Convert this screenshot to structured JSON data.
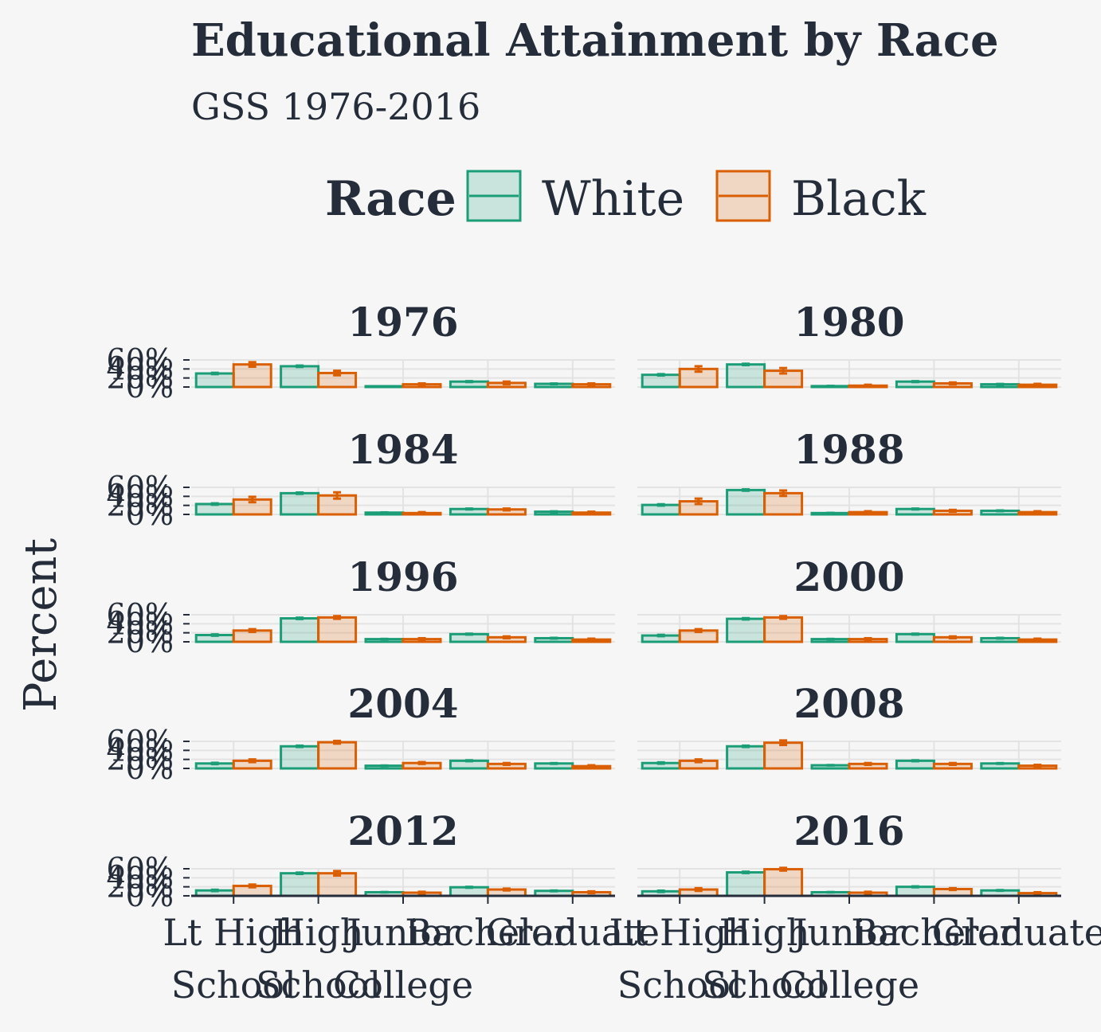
{
  "colors": {
    "white": "#1b9e77",
    "black": "#d95f02",
    "text": "#252d3a",
    "grid": "#e3e3e3",
    "background": "#f6f6f6"
  },
  "chart_data": {
    "type": "bar",
    "title": "Educational Attainment by Race",
    "subtitle": "GSS 1976-2016",
    "ylabel": "Percent",
    "xlabel": "",
    "ylim": [
      0,
      0.6
    ],
    "yticks": [
      "0%",
      "20%",
      "40%",
      "60%"
    ],
    "categories": [
      "Lt High School",
      "High School",
      "Junior College",
      "Bachelor",
      "Graduate"
    ],
    "legend": {
      "title": "Race",
      "entries": [
        "White",
        "Black"
      ],
      "position": "top"
    },
    "grid": true,
    "panels": [
      {
        "year": "1976",
        "series": [
          {
            "name": "White",
            "values": [
              0.3,
              0.46,
              0.0,
              0.12,
              0.07
            ],
            "errors": [
              0.015,
              0.015,
              0.005,
              0.01,
              0.008
            ]
          },
          {
            "name": "Black",
            "values": [
              0.5,
              0.31,
              0.06,
              0.09,
              0.06
            ],
            "errors": [
              0.05,
              0.05,
              0.02,
              0.03,
              0.02
            ]
          }
        ]
      },
      {
        "year": "1980",
        "series": [
          {
            "name": "White",
            "values": [
              0.27,
              0.5,
              0.02,
              0.12,
              0.06
            ],
            "errors": [
              0.015,
              0.015,
              0.005,
              0.01,
              0.008
            ]
          },
          {
            "name": "Black",
            "values": [
              0.4,
              0.36,
              0.03,
              0.08,
              0.05
            ],
            "errors": [
              0.06,
              0.06,
              0.02,
              0.02,
              0.02
            ]
          }
        ]
      },
      {
        "year": "1984",
        "series": [
          {
            "name": "White",
            "values": [
              0.23,
              0.47,
              0.04,
              0.12,
              0.06
            ],
            "errors": [
              0.015,
              0.015,
              0.005,
              0.01,
              0.008
            ]
          },
          {
            "name": "Black",
            "values": [
              0.33,
              0.42,
              0.03,
              0.11,
              0.04
            ],
            "errors": [
              0.06,
              0.07,
              0.02,
              0.02,
              0.02
            ]
          }
        ]
      },
      {
        "year": "1988",
        "series": [
          {
            "name": "White",
            "values": [
              0.21,
              0.54,
              0.03,
              0.12,
              0.08
            ],
            "errors": [
              0.015,
              0.015,
              0.005,
              0.01,
              0.008
            ]
          },
          {
            "name": "Black",
            "values": [
              0.29,
              0.47,
              0.05,
              0.08,
              0.05
            ],
            "errors": [
              0.06,
              0.06,
              0.02,
              0.02,
              0.02
            ]
          }
        ]
      },
      {
        "year": "1996",
        "series": [
          {
            "name": "White",
            "values": [
              0.15,
              0.52,
              0.06,
              0.17,
              0.08
            ],
            "errors": [
              0.015,
              0.015,
              0.005,
              0.01,
              0.008
            ]
          },
          {
            "name": "Black",
            "values": [
              0.25,
              0.54,
              0.06,
              0.1,
              0.05
            ],
            "errors": [
              0.03,
              0.03,
              0.02,
              0.02,
              0.02
            ]
          }
        ]
      },
      {
        "year": "2000",
        "series": [
          {
            "name": "White",
            "values": [
              0.14,
              0.51,
              0.06,
              0.17,
              0.08
            ],
            "errors": [
              0.015,
              0.015,
              0.005,
              0.01,
              0.008
            ]
          },
          {
            "name": "Black",
            "values": [
              0.25,
              0.54,
              0.06,
              0.1,
              0.05
            ],
            "errors": [
              0.03,
              0.03,
              0.02,
              0.02,
              0.02
            ]
          }
        ]
      },
      {
        "year": "2004",
        "series": [
          {
            "name": "White",
            "values": [
              0.11,
              0.49,
              0.06,
              0.17,
              0.11
            ],
            "errors": [
              0.015,
              0.015,
              0.005,
              0.01,
              0.008
            ]
          },
          {
            "name": "Black",
            "values": [
              0.17,
              0.58,
              0.12,
              0.1,
              0.05
            ],
            "errors": [
              0.03,
              0.03,
              0.02,
              0.02,
              0.02
            ]
          }
        ]
      },
      {
        "year": "2008",
        "series": [
          {
            "name": "White",
            "values": [
              0.12,
              0.49,
              0.07,
              0.17,
              0.11
            ],
            "errors": [
              0.015,
              0.015,
              0.005,
              0.01,
              0.008
            ]
          },
          {
            "name": "Black",
            "values": [
              0.17,
              0.57,
              0.1,
              0.1,
              0.06
            ],
            "errors": [
              0.03,
              0.05,
              0.02,
              0.02,
              0.02
            ]
          }
        ]
      },
      {
        "year": "2012",
        "series": [
          {
            "name": "White",
            "values": [
              0.12,
              0.5,
              0.08,
              0.19,
              0.11
            ],
            "errors": [
              0.015,
              0.015,
              0.005,
              0.01,
              0.008
            ]
          },
          {
            "name": "Black",
            "values": [
              0.22,
              0.5,
              0.07,
              0.14,
              0.08
            ],
            "errors": [
              0.03,
              0.05,
              0.02,
              0.02,
              0.02
            ]
          }
        ]
      },
      {
        "year": "2016",
        "series": [
          {
            "name": "White",
            "values": [
              0.1,
              0.52,
              0.08,
              0.2,
              0.12
            ],
            "errors": [
              0.015,
              0.015,
              0.005,
              0.01,
              0.008
            ]
          },
          {
            "name": "Black",
            "values": [
              0.14,
              0.59,
              0.07,
              0.15,
              0.06
            ],
            "errors": [
              0.03,
              0.03,
              0.02,
              0.02,
              0.02
            ]
          }
        ]
      }
    ]
  }
}
